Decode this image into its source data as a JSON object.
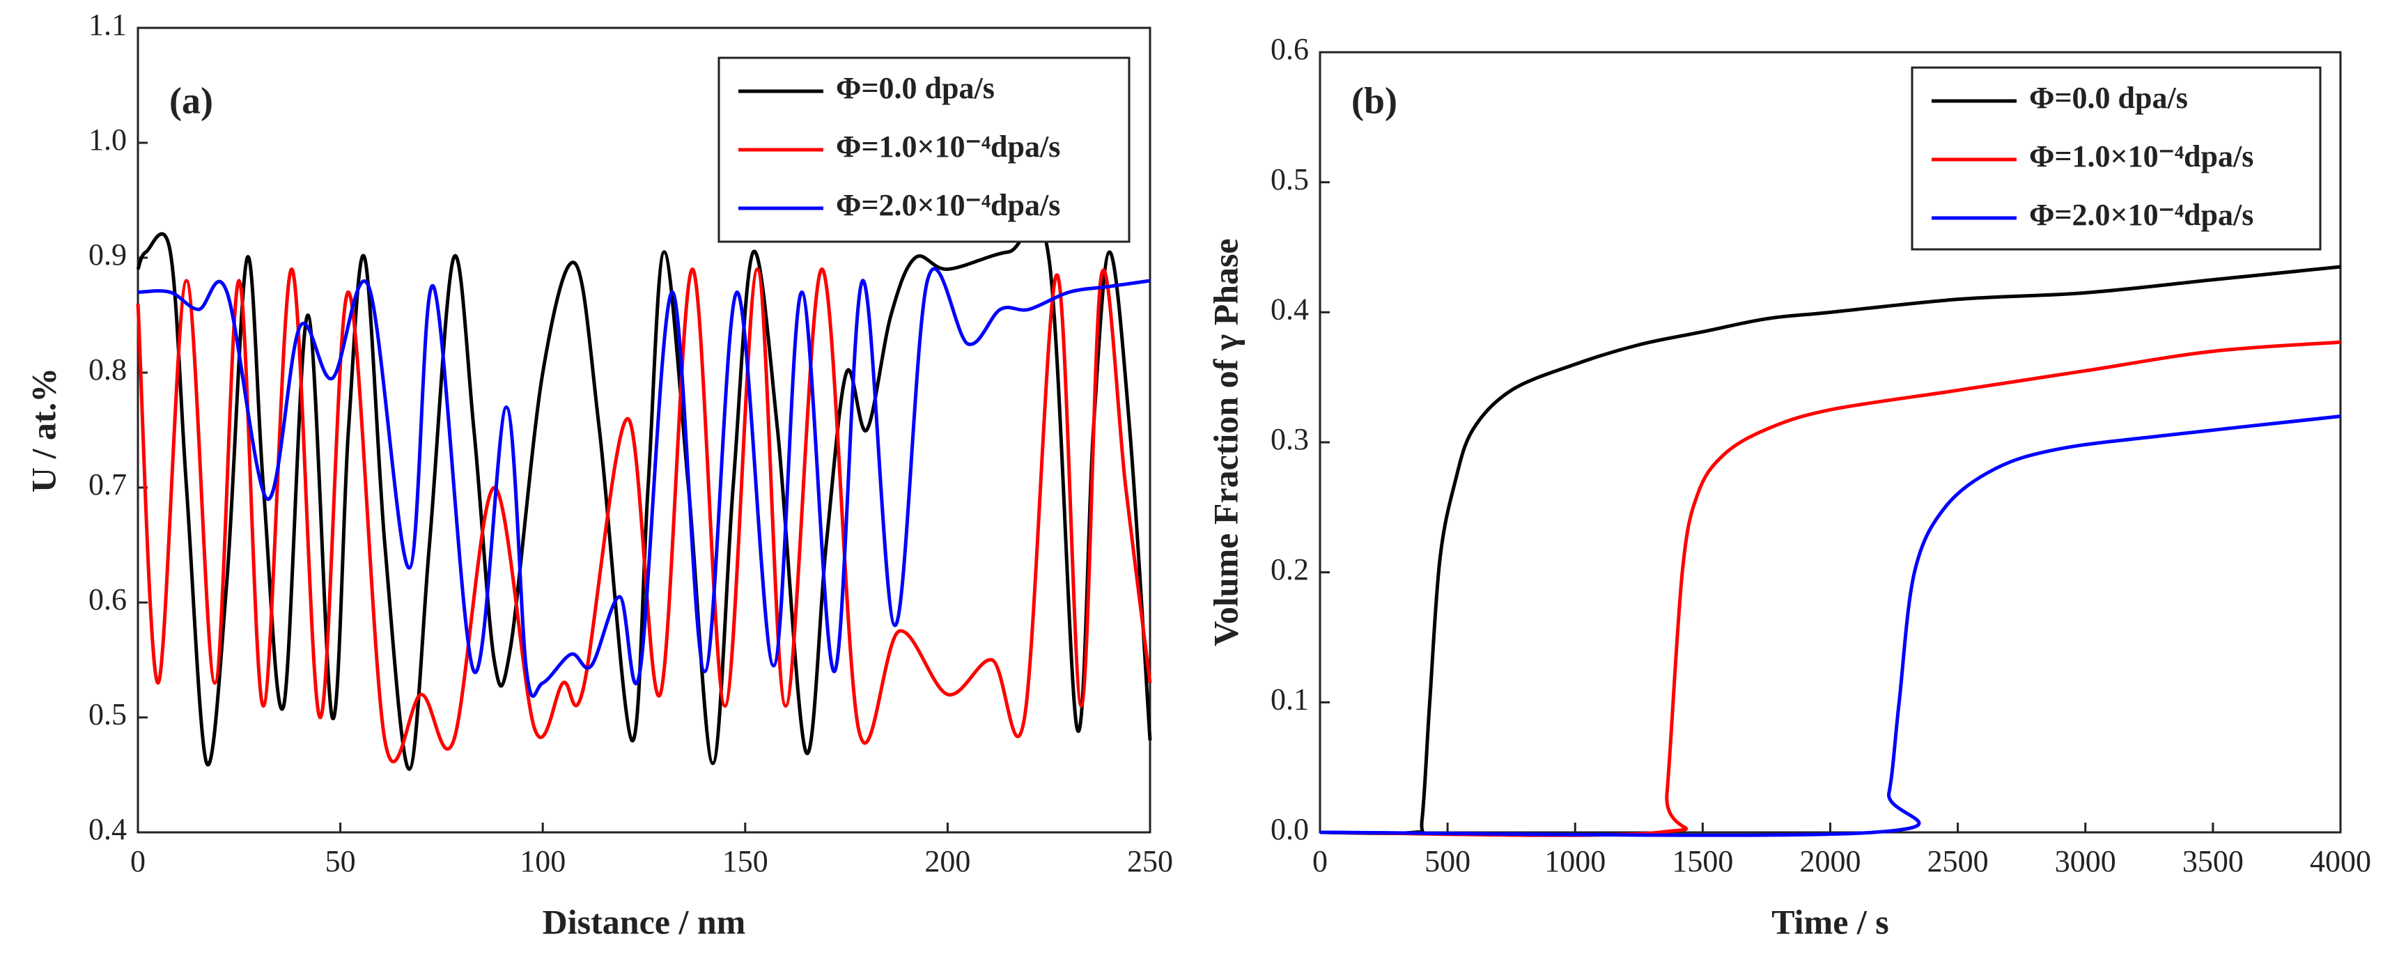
{
  "chart_data": [
    {
      "type": "line",
      "panel_label": "(a)",
      "xlabel": "Distance / nm",
      "ylabel": "U / at.%",
      "xlim": [
        0,
        250
      ],
      "xticks": [
        0,
        50,
        100,
        150,
        200,
        250
      ],
      "ylim": [
        0.4,
        1.1
      ],
      "yticks": [
        0.4,
        0.5,
        0.6,
        0.7,
        0.8,
        0.9,
        {
          "value": 1,
          "label": "1.0"
        },
        1.1
      ],
      "legend": "upper right",
      "series": [
        {
          "name": "Φ=0.0 dpa/s",
          "color": "#000000",
          "x": [
            0,
            2,
            8,
            12,
            17,
            22,
            27,
            31,
            36,
            42,
            48,
            52,
            56,
            61,
            67,
            72,
            78,
            83,
            88,
            92,
            100,
            108,
            114,
            122,
            126,
            130,
            136,
            142,
            147,
            152,
            158,
            165,
            170,
            175,
            180,
            186,
            192,
            200,
            215,
            225,
            232,
            236,
            240,
            245,
            250
          ],
          "values": [
            0.89,
            0.905,
            0.905,
            0.7,
            0.46,
            0.62,
            0.9,
            0.7,
            0.51,
            0.85,
            0.5,
            0.75,
            0.9,
            0.65,
            0.455,
            0.65,
            0.9,
            0.75,
            0.55,
            0.56,
            0.8,
            0.895,
            0.75,
            0.48,
            0.7,
            0.905,
            0.7,
            0.46,
            0.7,
            0.905,
            0.75,
            0.47,
            0.65,
            0.8,
            0.75,
            0.85,
            0.9,
            0.89,
            0.905,
            0.9,
            0.49,
            0.75,
            0.905,
            0.75,
            0.48
          ]
        },
        {
          "name": "Φ=1.0×10⁻⁴dpa/s",
          "color": "#ff0000",
          "x": [
            0,
            5,
            12,
            19,
            25,
            31,
            38,
            45,
            52,
            61,
            70,
            78,
            88,
            98,
            105,
            110,
            121,
            129,
            137,
            145,
            153,
            160,
            169,
            178,
            188,
            200,
            211,
            219,
            227,
            233,
            238,
            244,
            250
          ],
          "values": [
            0.86,
            0.53,
            0.88,
            0.53,
            0.88,
            0.51,
            0.89,
            0.5,
            0.87,
            0.48,
            0.52,
            0.48,
            0.7,
            0.49,
            0.53,
            0.525,
            0.76,
            0.52,
            0.89,
            0.51,
            0.89,
            0.51,
            0.89,
            0.49,
            0.575,
            0.52,
            0.55,
            0.5,
            0.885,
            0.51,
            0.885,
            0.7,
            0.53
          ]
        },
        {
          "name": "Φ=2.0×10⁻⁴dpa/s",
          "color": "#0000ff",
          "x": [
            0,
            8,
            15,
            22,
            32,
            40,
            48,
            57,
            67,
            73,
            83,
            91,
            96,
            100,
            107,
            112,
            119,
            124,
            132,
            140,
            148,
            157,
            164,
            172,
            179,
            187,
            195,
            205,
            213,
            220,
            230,
            240,
            250
          ],
          "values": [
            0.87,
            0.87,
            0.855,
            0.87,
            0.69,
            0.84,
            0.795,
            0.875,
            0.63,
            0.875,
            0.54,
            0.77,
            0.54,
            0.53,
            0.555,
            0.545,
            0.605,
            0.54,
            0.87,
            0.54,
            0.87,
            0.545,
            0.87,
            0.54,
            0.88,
            0.58,
            0.88,
            0.825,
            0.855,
            0.855,
            0.87,
            0.875,
            0.88
          ]
        }
      ]
    },
    {
      "type": "line",
      "panel_label": "(b)",
      "xlabel": "Time / s",
      "ylabel": "Volume Fraction of γ Phase",
      "xlim": [
        0,
        4000
      ],
      "xticks": [
        0,
        500,
        1000,
        1500,
        2000,
        2500,
        3000,
        3500,
        4000
      ],
      "ylim": [
        0,
        0.6
      ],
      "yticks": [
        {
          "value": 0,
          "label": "0.0"
        },
        0.1,
        0.2,
        0.3,
        0.4,
        0.5,
        0.6
      ],
      "legend": "upper right",
      "series": [
        {
          "name": "Φ=0.0 dpa/s",
          "color": "#000000",
          "x": [
            0,
            370,
            400,
            430,
            470,
            530,
            600,
            750,
            1000,
            1250,
            1500,
            1750,
            2000,
            2500,
            3000,
            3500,
            4000
          ],
          "values": [
            0,
            0,
            0.01,
            0.1,
            0.21,
            0.27,
            0.31,
            0.34,
            0.36,
            0.375,
            0.385,
            0.395,
            0.4,
            0.41,
            0.415,
            0.425,
            0.435
          ]
        },
        {
          "name": "Φ=1.0×10⁻⁴dpa/s",
          "color": "#ff0000",
          "x": [
            0,
            1330,
            1360,
            1420,
            1480,
            1580,
            1750,
            2000,
            2500,
            3000,
            3500,
            4000
          ],
          "values": [
            0,
            0,
            0.03,
            0.2,
            0.26,
            0.29,
            0.31,
            0.325,
            0.34,
            0.355,
            0.37,
            0.377
          ]
        },
        {
          "name": "Φ=2.0×10⁻⁴dpa/s",
          "color": "#0000ff",
          "x": [
            0,
            2170,
            2230,
            2270,
            2330,
            2450,
            2650,
            2900,
            3300,
            4000
          ],
          "values": [
            0,
            0,
            0.03,
            0.1,
            0.2,
            0.25,
            0.28,
            0.295,
            0.305,
            0.32
          ]
        }
      ]
    }
  ]
}
